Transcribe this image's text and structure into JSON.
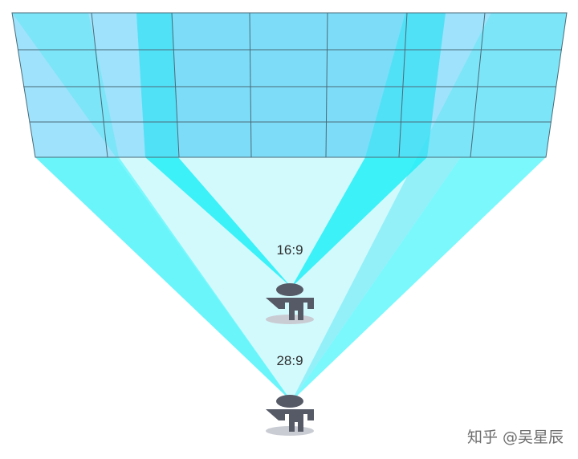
{
  "diagram": {
    "title": "",
    "wall": {
      "rows": 4,
      "columns": 7,
      "fill": "#9fe2fb",
      "grid_line": "#4a6a78"
    },
    "viewers": [
      {
        "id": "near",
        "ratio_label": "16:9",
        "beam_color": "#2ff0f8"
      },
      {
        "id": "far",
        "ratio_label": "28:9",
        "beam_color": "#63fbfc"
      }
    ],
    "colors": {
      "floor_beam": "#c8fcff",
      "person": "#555a66",
      "shadow": "#c9ccd3"
    },
    "watermark": "知乎 @吴星辰"
  }
}
